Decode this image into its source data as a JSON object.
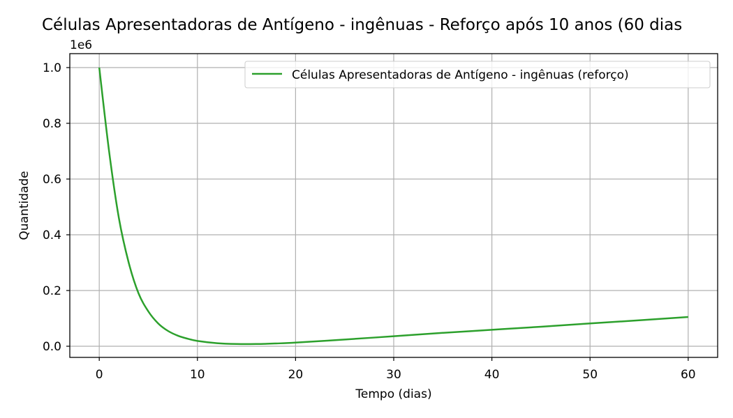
{
  "chart_data": {
    "type": "line",
    "title": "Células Apresentadoras de Antígeno - ingênuas - Reforço após 10 anos (60 dias",
    "xlabel": "Tempo (dias)",
    "ylabel": "Quantidade",
    "y_offset_label": "1e6",
    "xlim": [
      -3,
      63
    ],
    "ylim": [
      -0.04,
      1.05
    ],
    "xticks": [
      0,
      10,
      20,
      30,
      40,
      50,
      60
    ],
    "xtick_labels": [
      "0",
      "10",
      "20",
      "30",
      "40",
      "50",
      "60"
    ],
    "yticks": [
      0.0,
      0.2,
      0.4,
      0.6,
      0.8,
      1.0
    ],
    "ytick_labels": [
      "0.0",
      "0.2",
      "0.4",
      "0.6",
      "0.8",
      "1.0"
    ],
    "grid": true,
    "legend_position": "top-right",
    "series": [
      {
        "name": "Células Apresentadoras de Antígeno - ingênuas (reforço)",
        "color": "#2ca02c",
        "x": [
          0,
          1,
          2,
          3,
          4,
          5,
          6,
          7,
          8,
          9,
          10,
          12,
          14,
          16,
          18,
          20,
          25,
          30,
          35,
          40,
          45,
          50,
          55,
          60
        ],
        "y": [
          1.0,
          0.7,
          0.46,
          0.3,
          0.19,
          0.125,
          0.082,
          0.055,
          0.038,
          0.027,
          0.019,
          0.011,
          0.008,
          0.008,
          0.01,
          0.013,
          0.024,
          0.036,
          0.048,
          0.059,
          0.07,
          0.082,
          0.093,
          0.105
        ]
      }
    ]
  }
}
